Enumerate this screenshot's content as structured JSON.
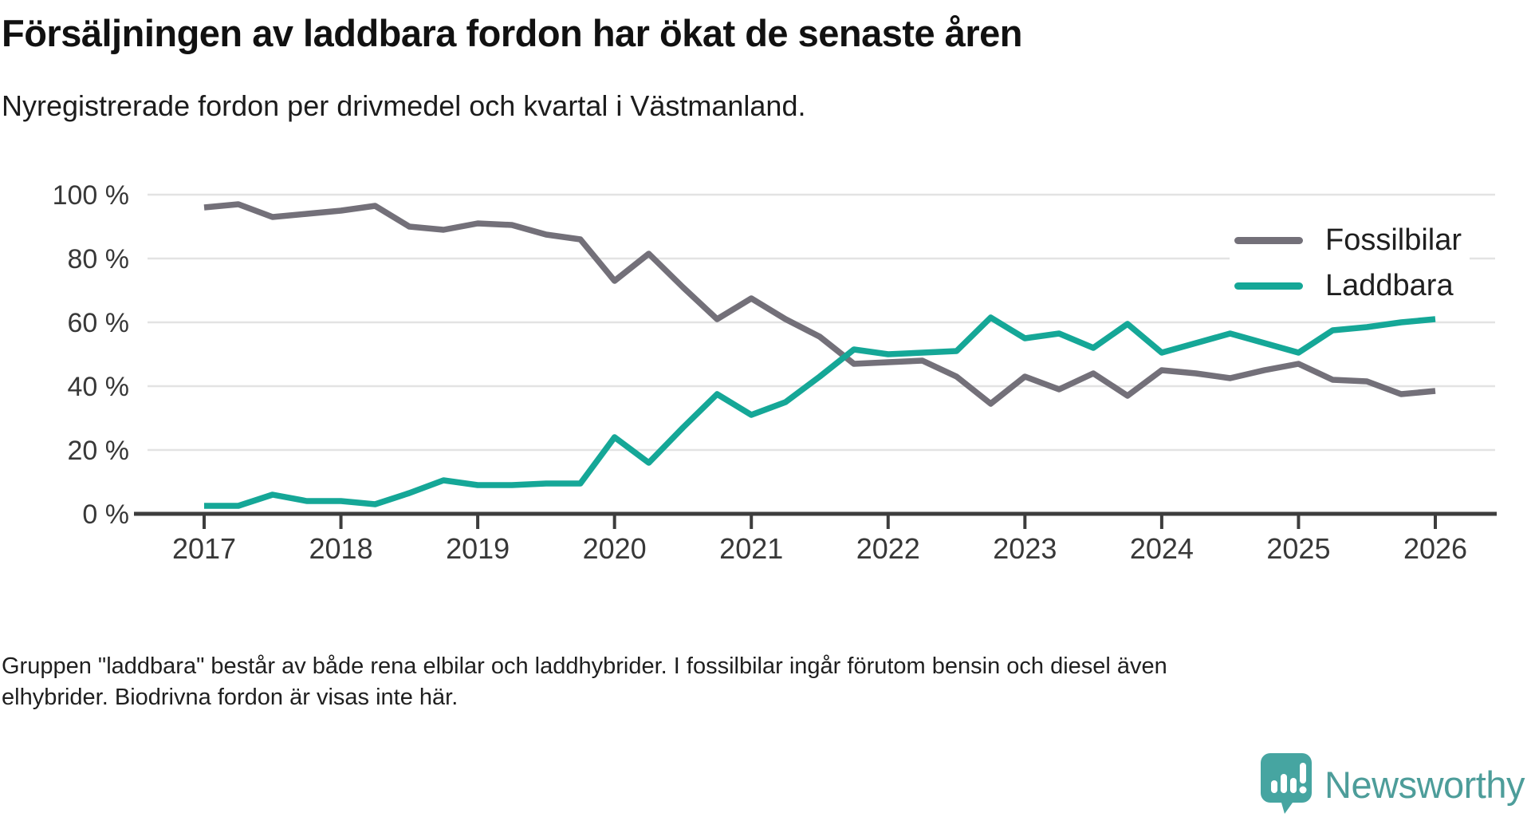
{
  "header": {
    "title": "Försäljningen av laddbara fordon har ökat de senaste åren",
    "subtitle": "Nyregistrerade fordon per drivmedel och kvartal i Västmanland."
  },
  "chart_data": {
    "type": "line",
    "x": [
      "2017Q1",
      "2017Q2",
      "2017Q3",
      "2017Q4",
      "2018Q1",
      "2018Q2",
      "2018Q3",
      "2018Q4",
      "2019Q1",
      "2019Q2",
      "2019Q3",
      "2019Q4",
      "2020Q1",
      "2020Q2",
      "2020Q3",
      "2020Q4",
      "2021Q1",
      "2021Q2",
      "2021Q3",
      "2021Q4",
      "2022Q1",
      "2022Q2",
      "2022Q3",
      "2022Q4",
      "2023Q1",
      "2023Q2",
      "2023Q3",
      "2023Q4",
      "2024Q1",
      "2024Q2",
      "2024Q3",
      "2024Q4",
      "2025Q1",
      "2025Q2",
      "2025Q3",
      "2025Q4",
      "2026Q1"
    ],
    "x_tick_labels": [
      "2017",
      "2018",
      "2019",
      "2020",
      "2021",
      "2022",
      "2023",
      "2024",
      "2025",
      "2026"
    ],
    "y_tick_labels": [
      "0 %",
      "20 %",
      "40 %",
      "60 %",
      "80 %",
      "100 %"
    ],
    "ylim": [
      0,
      100
    ],
    "grid": "horizontal",
    "legend_position": "top-right",
    "ylabel": "",
    "xlabel": "",
    "series": [
      {
        "name": "Fossilbilar",
        "color": "#737079",
        "values": [
          96,
          97,
          93,
          94,
          95,
          96.5,
          90,
          89,
          91,
          90.5,
          87.5,
          86,
          73,
          81.5,
          71,
          61,
          67.5,
          61,
          55.5,
          47,
          47.5,
          48,
          43,
          34.5,
          43,
          39,
          44,
          37,
          45,
          44,
          42.5,
          45,
          47,
          42,
          41.5,
          37.5,
          38.5
        ]
      },
      {
        "name": "Laddbara",
        "color": "#15a797",
        "values": [
          2.5,
          2.5,
          6,
          4,
          4,
          3,
          6.5,
          10.5,
          9,
          9,
          9.5,
          9.5,
          24,
          16,
          27,
          37.5,
          31,
          35,
          43,
          51.5,
          50,
          50.5,
          51,
          61.5,
          55,
          56.5,
          52,
          59.5,
          50.5,
          53.5,
          56.5,
          53.5,
          50.5,
          57.5,
          58.5,
          60,
          61
        ]
      }
    ]
  },
  "footnote": {
    "line1": "Gruppen \"laddbara\" består av både rena elbilar och laddhybrider. I fossilbilar ingår förutom bensin och diesel även",
    "line2": "elhybrider. Biodrivna fordon är visas inte här."
  },
  "footer": {
    "brand": "Newsworthy"
  },
  "colors": {
    "fossil_gray": "#737079",
    "laddbara_teal": "#15a797",
    "logo_bubble": "#46a5a1",
    "logo_text": "#4d9d9a"
  }
}
